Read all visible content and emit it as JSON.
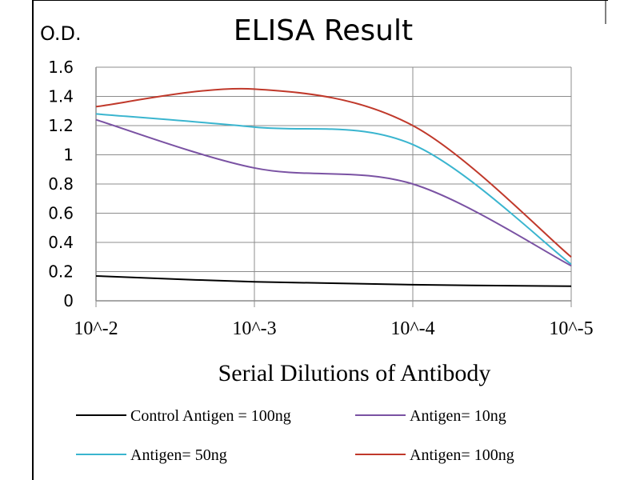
{
  "chart_data": {
    "type": "line",
    "title": "ELISA Result",
    "ylabel": "O.D.",
    "xlabel": "Serial Dilutions of Antibody",
    "categories": [
      "10^-2",
      "10^-3",
      "10^-4",
      "10^-5"
    ],
    "ylim": [
      0,
      1.6
    ],
    "yticks": [
      "0",
      "0.2",
      "0.4",
      "0.6",
      "0.8",
      "1",
      "1.2",
      "1.4",
      "1.6"
    ],
    "grid": true,
    "legend_position": "bottom",
    "series": [
      {
        "name": "Control Antigen = 100ng",
        "color": "#000000",
        "values": [
          0.17,
          0.13,
          0.11,
          0.1
        ]
      },
      {
        "name": "Antigen= 10ng",
        "color": "#7a52a3",
        "values": [
          1.24,
          0.91,
          0.8,
          0.24
        ]
      },
      {
        "name": "Antigen= 50ng",
        "color": "#3ab5cf",
        "values": [
          1.28,
          1.19,
          1.07,
          0.25
        ]
      },
      {
        "name": "Antigen= 100ng",
        "color": "#c0392b",
        "values": [
          1.33,
          1.45,
          1.2,
          0.3
        ]
      }
    ]
  }
}
